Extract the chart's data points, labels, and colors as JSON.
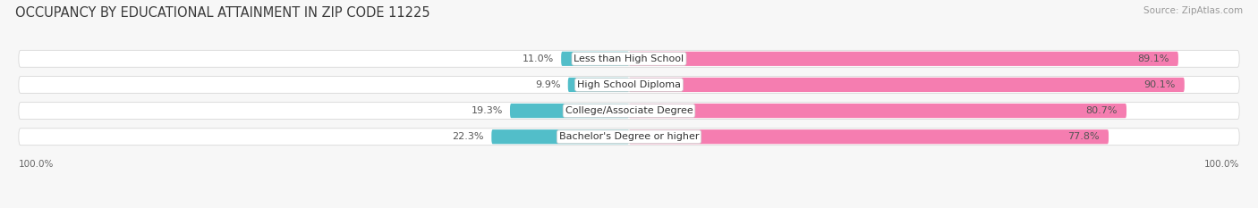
{
  "title": "OCCUPANCY BY EDUCATIONAL ATTAINMENT IN ZIP CODE 11225",
  "source": "Source: ZipAtlas.com",
  "categories": [
    "Less than High School",
    "High School Diploma",
    "College/Associate Degree",
    "Bachelor's Degree or higher"
  ],
  "owner_pct": [
    11.0,
    9.9,
    19.3,
    22.3
  ],
  "renter_pct": [
    89.1,
    90.1,
    80.7,
    77.8
  ],
  "owner_color": "#52bec9",
  "renter_color": "#f57db0",
  "bg_color": "#f7f7f7",
  "row_bg_color": "#ffffff",
  "title_fontsize": 10.5,
  "source_fontsize": 7.5,
  "label_fontsize": 8,
  "pct_fontsize": 8,
  "axis_label_left": "100.0%",
  "axis_label_right": "100.0%"
}
